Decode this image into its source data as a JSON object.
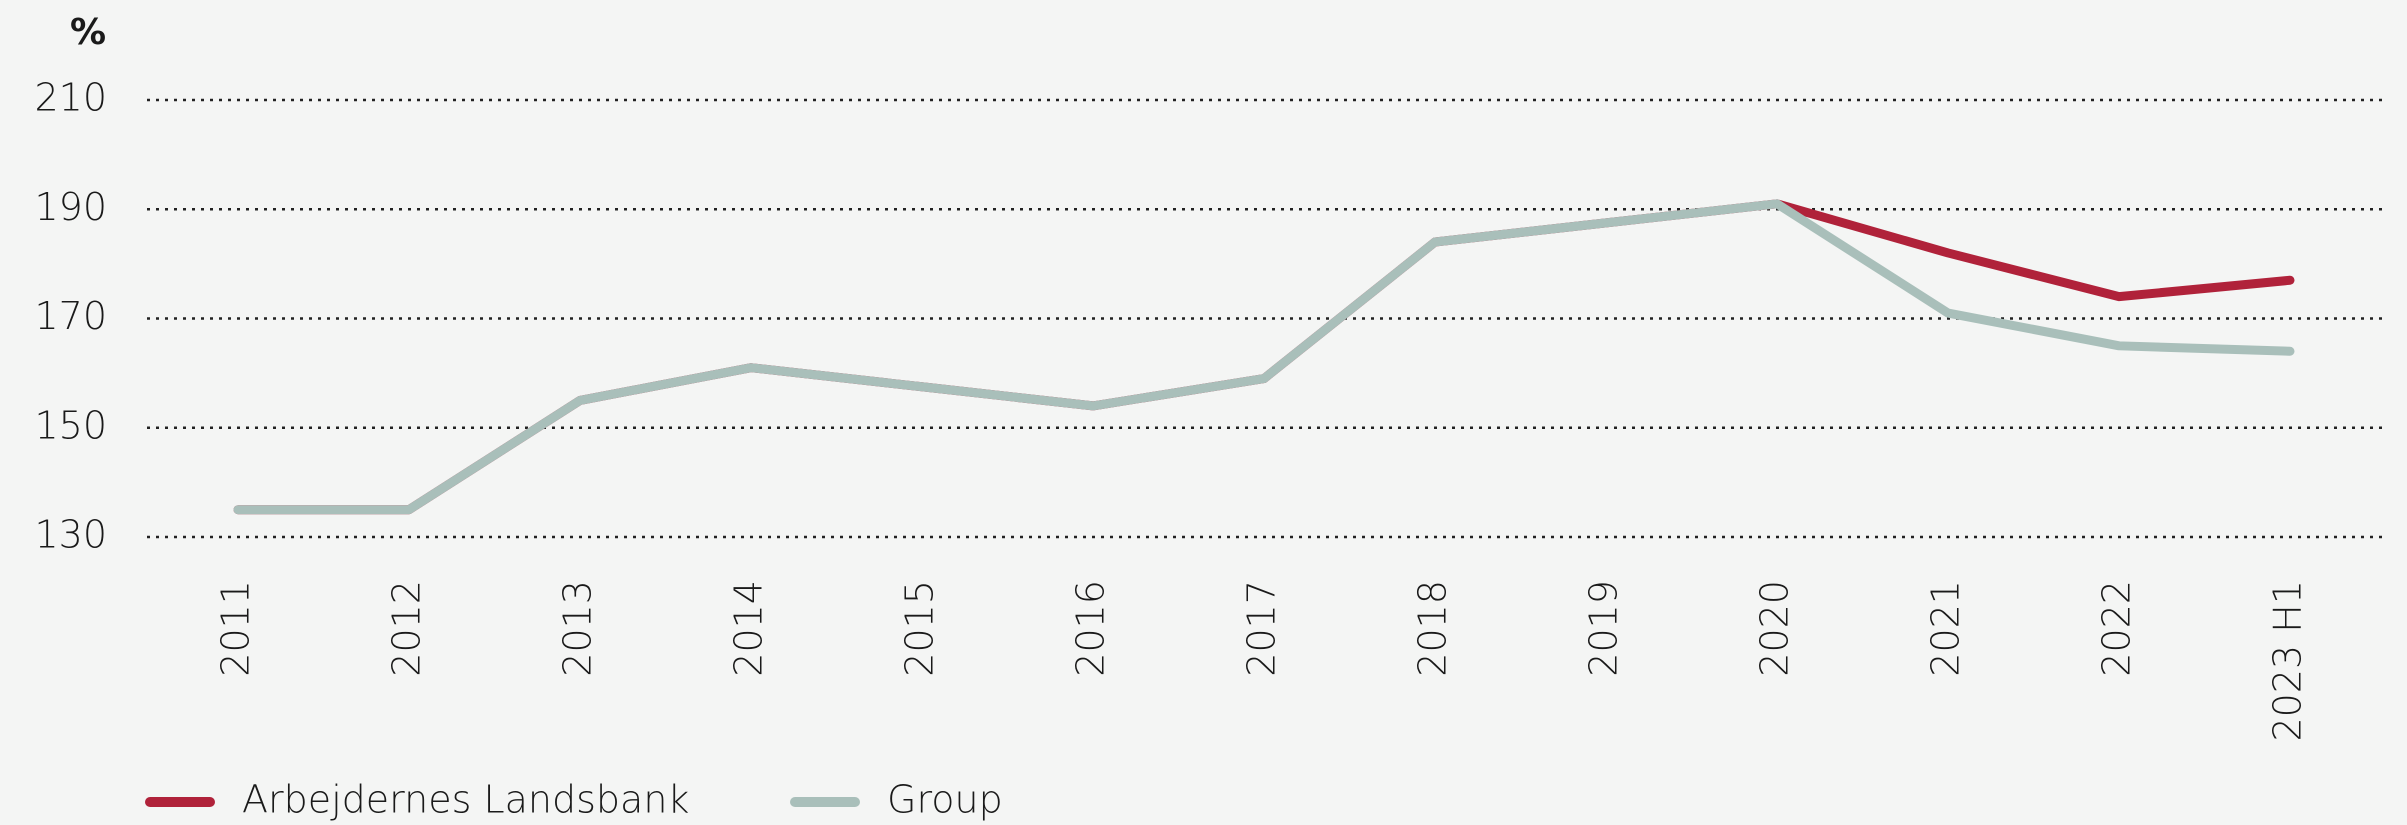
{
  "chart_data": {
    "type": "line",
    "y_unit": "%",
    "categories": [
      "2011",
      "2012",
      "2013",
      "2014",
      "2015",
      "2016",
      "2017",
      "2018",
      "2019",
      "2020",
      "2021",
      "2022",
      "2023 H1"
    ],
    "series": [
      {
        "name": "Arbejdernes Landsbank",
        "color": "#b0223a",
        "values": [
          135,
          135,
          155,
          161,
          157.5,
          154,
          159,
          184,
          187.5,
          191,
          182,
          174,
          177
        ]
      },
      {
        "name": "Group",
        "color": "#a9bfba",
        "values": [
          135,
          135,
          155,
          161,
          157.5,
          154,
          159,
          184,
          187.5,
          191,
          171,
          165,
          164
        ]
      }
    ],
    "ylim": [
      130,
      210
    ],
    "yticks": [
      130,
      150,
      170,
      190,
      210
    ],
    "grid": true
  }
}
